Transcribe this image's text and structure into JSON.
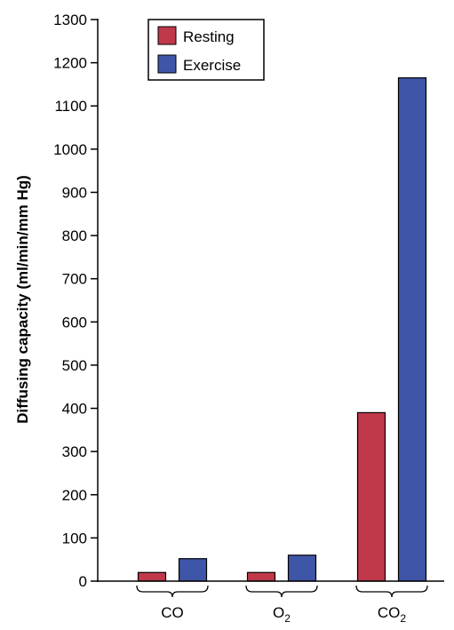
{
  "chart_data": {
    "type": "bar",
    "categories": [
      {
        "label": "CO",
        "sub": ""
      },
      {
        "label": "O",
        "sub": "2"
      },
      {
        "label": "CO",
        "sub": "2"
      }
    ],
    "series": [
      {
        "name": "Resting",
        "color": "#c0394b",
        "values": [
          20,
          20,
          390
        ]
      },
      {
        "name": "Exercise",
        "color": "#3f55a8",
        "values": [
          52,
          60,
          1165
        ]
      }
    ],
    "ylabel": "Diffusing capacity (ml/min/mm Hg)",
    "xlabel": "",
    "ylim": [
      0,
      1300
    ],
    "yticks": [
      0,
      100,
      200,
      300,
      400,
      500,
      600,
      700,
      800,
      900,
      1000,
      1100,
      1200,
      1300
    ],
    "grid": false,
    "legend_position": "top-center"
  }
}
